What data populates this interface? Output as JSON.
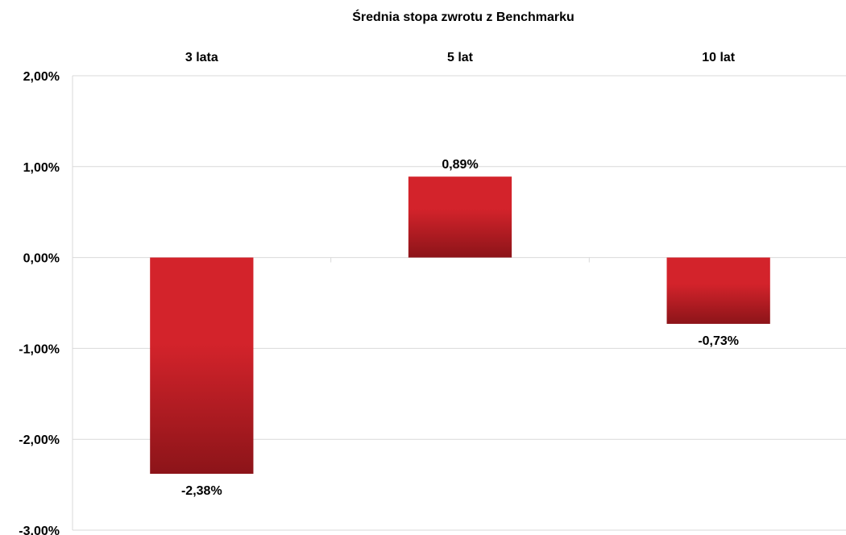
{
  "chart_data": {
    "type": "bar",
    "title": "Średnia stopa zwrotu z Benchmarku",
    "categories": [
      "3 lata",
      "5 lat",
      "10 lat"
    ],
    "values": [
      -2.38,
      0.89,
      -0.73
    ],
    "value_labels": [
      "-2,38%",
      "0,89%",
      "-0,73%"
    ],
    "ylim": [
      -3,
      2
    ],
    "yticks": [
      2,
      1,
      0,
      -1,
      -2,
      -3
    ],
    "ytick_labels": [
      "2,00%",
      "1,00%",
      "0,00%",
      "-1,00%",
      "-2,00%",
      "-3,00%"
    ],
    "category_axis_position": "top",
    "grid": true,
    "legend": "none",
    "colors": {
      "bar_light": "#d3232b",
      "bar_dark": "#8c1419",
      "grid": "#d9d9d9"
    }
  }
}
